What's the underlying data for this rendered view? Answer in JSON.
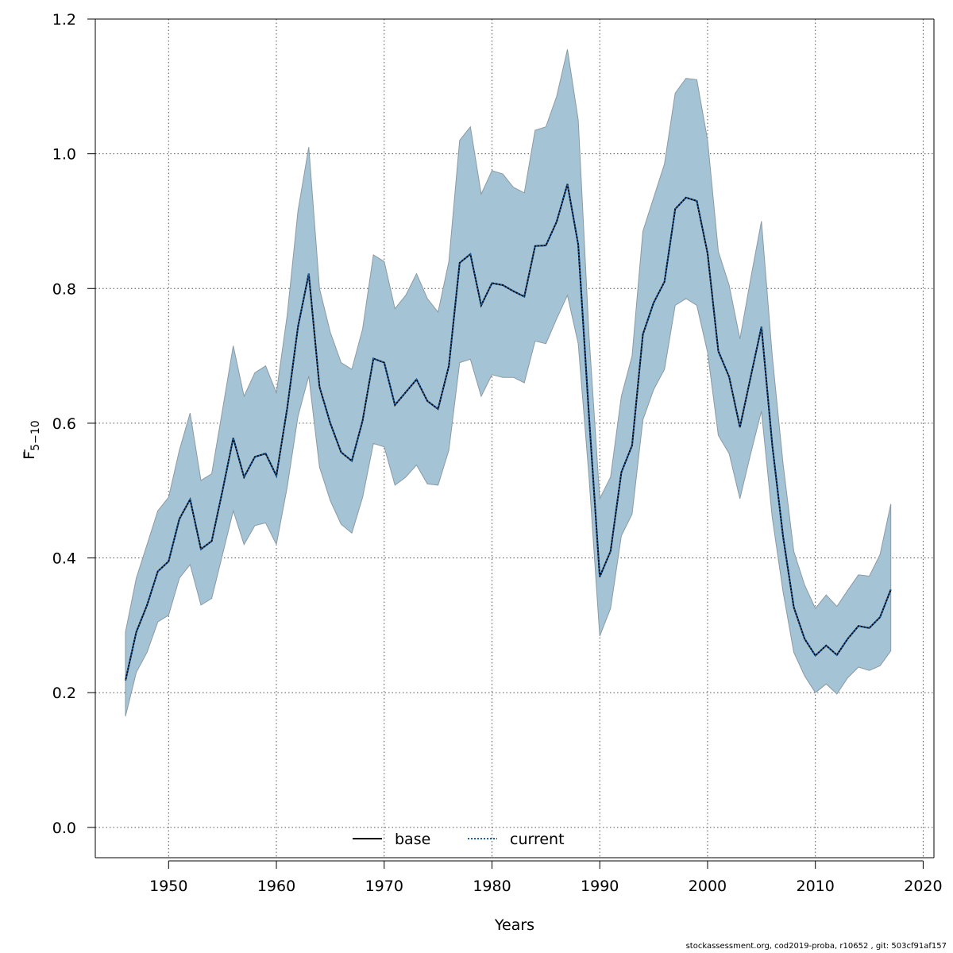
{
  "chart_data": {
    "type": "line",
    "title": "",
    "xlabel": "Years",
    "ylabel_main": "F",
    "ylabel_sub": "5−10",
    "xlim": [
      1943.2,
      2021
    ],
    "ylim": [
      -0.045,
      1.2
    ],
    "x_ticks": [
      1950,
      1960,
      1970,
      1980,
      1990,
      2000,
      2010,
      2020
    ],
    "y_ticks": [
      0.0,
      0.2,
      0.4,
      0.6,
      0.8,
      1.0,
      1.2
    ],
    "y_tick_labels": [
      "0.0",
      "0.2",
      "0.4",
      "0.6",
      "0.8",
      "1.0",
      "1.2"
    ],
    "grid": true,
    "legend_position": "bottom-center",
    "band_color": "#a4c4d6",
    "band_edge_color": "#8a9aa3",
    "years": [
      1946,
      1947,
      1948,
      1949,
      1950,
      1951,
      1952,
      1953,
      1954,
      1955,
      1956,
      1957,
      1958,
      1959,
      1960,
      1961,
      1962,
      1963,
      1964,
      1965,
      1966,
      1967,
      1968,
      1969,
      1970,
      1971,
      1972,
      1973,
      1974,
      1975,
      1976,
      1977,
      1978,
      1979,
      1980,
      1981,
      1982,
      1983,
      1984,
      1985,
      1986,
      1987,
      1988,
      1989,
      1990,
      1991,
      1992,
      1993,
      1994,
      1995,
      1996,
      1997,
      1998,
      1999,
      2000,
      2001,
      2002,
      2003,
      2004,
      2005,
      2006,
      2007,
      2008,
      2009,
      2010,
      2011,
      2012,
      2013,
      2014,
      2015,
      2016,
      2017
    ],
    "upper": [
      0.29,
      0.37,
      0.42,
      0.47,
      0.49,
      0.56,
      0.615,
      0.515,
      0.525,
      0.62,
      0.715,
      0.64,
      0.675,
      0.685,
      0.645,
      0.76,
      0.915,
      1.01,
      0.8,
      0.735,
      0.69,
      0.68,
      0.74,
      0.85,
      0.84,
      0.77,
      0.79,
      0.822,
      0.785,
      0.765,
      0.84,
      1.02,
      1.04,
      0.94,
      0.975,
      0.97,
      0.95,
      0.942,
      1.035,
      1.04,
      1.085,
      1.155,
      1.05,
      0.73,
      0.488,
      0.52,
      0.64,
      0.7,
      0.885,
      0.935,
      0.985,
      1.09,
      1.112,
      1.11,
      1.02,
      0.855,
      0.805,
      0.725,
      0.815,
      0.9,
      0.7,
      0.54,
      0.41,
      0.36,
      0.325,
      0.345,
      0.328,
      0.352,
      0.375,
      0.373,
      0.405,
      0.48
    ],
    "lower": [
      0.165,
      0.23,
      0.26,
      0.305,
      0.315,
      0.37,
      0.39,
      0.33,
      0.34,
      0.405,
      0.47,
      0.42,
      0.448,
      0.452,
      0.42,
      0.505,
      0.61,
      0.67,
      0.535,
      0.485,
      0.45,
      0.437,
      0.49,
      0.57,
      0.565,
      0.508,
      0.52,
      0.538,
      0.51,
      0.508,
      0.56,
      0.69,
      0.695,
      0.64,
      0.672,
      0.668,
      0.668,
      0.66,
      0.722,
      0.718,
      0.755,
      0.79,
      0.718,
      0.52,
      0.284,
      0.325,
      0.433,
      0.465,
      0.605,
      0.65,
      0.68,
      0.775,
      0.785,
      0.775,
      0.705,
      0.582,
      0.555,
      0.488,
      0.555,
      0.618,
      0.46,
      0.35,
      0.26,
      0.225,
      0.2,
      0.213,
      0.198,
      0.222,
      0.238,
      0.233,
      0.24,
      0.262
    ],
    "series": [
      {
        "name": "base",
        "style": "solid",
        "color": "#000000",
        "values": [
          0.218,
          0.29,
          0.33,
          0.38,
          0.395,
          0.458,
          0.487,
          0.413,
          0.425,
          0.5,
          0.578,
          0.52,
          0.55,
          0.555,
          0.522,
          0.622,
          0.743,
          0.822,
          0.654,
          0.6,
          0.557,
          0.544,
          0.604,
          0.696,
          0.69,
          0.627,
          0.646,
          0.665,
          0.633,
          0.621,
          0.685,
          0.838,
          0.851,
          0.775,
          0.808,
          0.805,
          0.796,
          0.788,
          0.863,
          0.864,
          0.899,
          0.955,
          0.865,
          0.61,
          0.372,
          0.41,
          0.527,
          0.567,
          0.732,
          0.779,
          0.81,
          0.918,
          0.935,
          0.93,
          0.852,
          0.707,
          0.669,
          0.594,
          0.669,
          0.743,
          0.568,
          0.432,
          0.327,
          0.28,
          0.255,
          0.27,
          0.256,
          0.28,
          0.299,
          0.296,
          0.312,
          0.353
        ]
      },
      {
        "name": "current",
        "style": "dotted",
        "color": "#1a5fa8",
        "values": [
          0.218,
          0.29,
          0.33,
          0.38,
          0.395,
          0.458,
          0.487,
          0.413,
          0.425,
          0.5,
          0.578,
          0.52,
          0.55,
          0.555,
          0.522,
          0.622,
          0.743,
          0.822,
          0.654,
          0.6,
          0.557,
          0.544,
          0.604,
          0.696,
          0.69,
          0.627,
          0.646,
          0.665,
          0.633,
          0.621,
          0.685,
          0.838,
          0.851,
          0.775,
          0.808,
          0.805,
          0.796,
          0.788,
          0.863,
          0.864,
          0.899,
          0.955,
          0.865,
          0.61,
          0.372,
          0.41,
          0.527,
          0.567,
          0.732,
          0.779,
          0.81,
          0.918,
          0.935,
          0.93,
          0.852,
          0.707,
          0.669,
          0.594,
          0.669,
          0.743,
          0.568,
          0.432,
          0.327,
          0.28,
          0.255,
          0.27,
          0.256,
          0.28,
          0.299,
          0.296,
          0.312,
          0.353
        ]
      }
    ]
  },
  "footer": "stockassessment.org, cod2019-proba, r10652 , git: 503cf91af157"
}
